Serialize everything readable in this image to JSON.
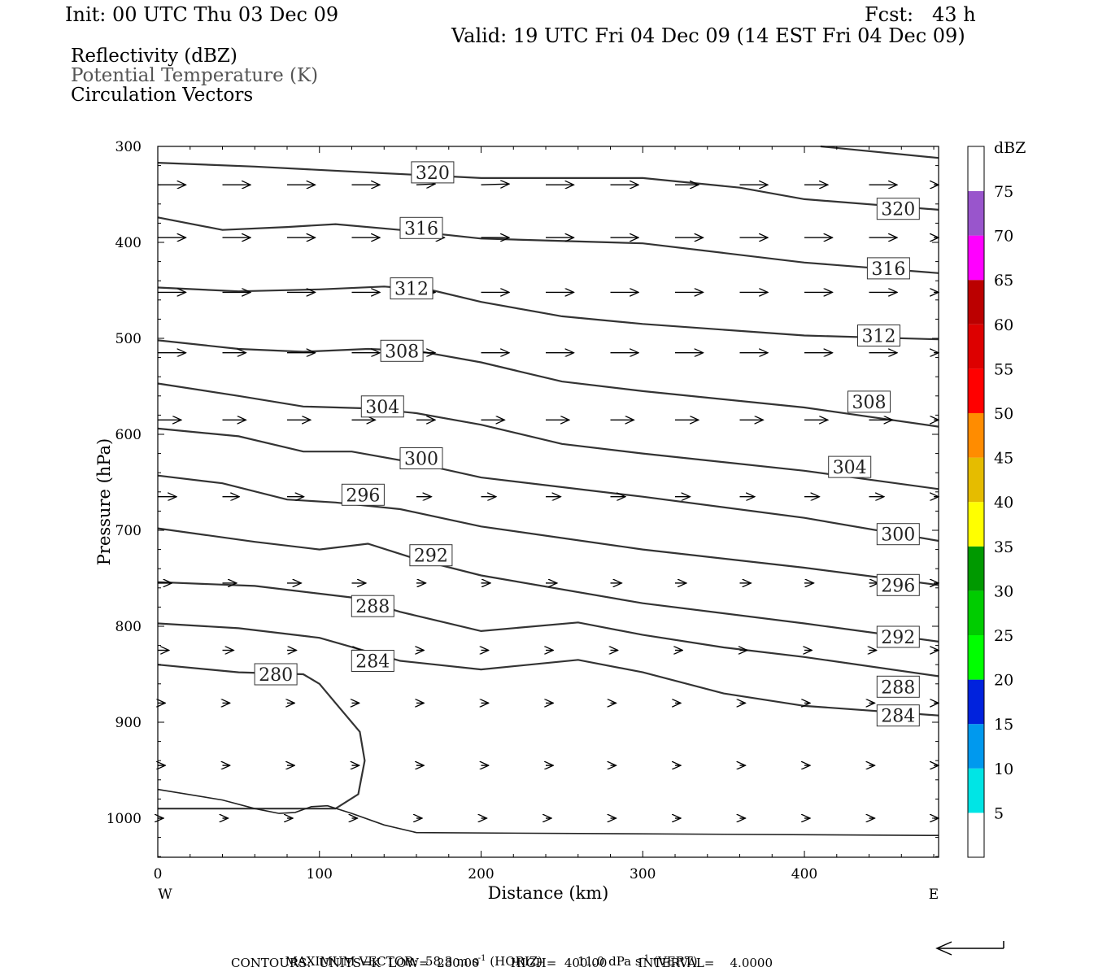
{
  "header": {
    "init": "Init: 00 UTC Thu 03 Dec 09",
    "fcst": "Fcst:   43 h",
    "valid": "Valid: 19 UTC Fri 04 Dec 09 (14 EST Fri 04 Dec 09)",
    "fields": [
      "Reflectivity (dBZ)",
      "Potential Temperature (K)",
      "Circulation Vectors"
    ],
    "field_colors": [
      "#000000",
      "#555555",
      "#000000"
    ]
  },
  "footer": {
    "max_vector": "MAXIMUM VECTOR:  58.3 m s",
    "max_vector_exp1": "-1",
    "max_vector_mid": " (HORIZ)         11.0 dPa s",
    "max_vector_exp2": "-1",
    "max_vector_end": " (VERT)",
    "contours": "CONTOURS:  UNITS=K  LOW=  280.00        HIGH=  400.00        INTERVAL=    4.0000"
  },
  "chart_data": {
    "type": "line",
    "xlabel": "Distance (km)",
    "ylabel": "Pressure (hPa)",
    "xlim": [
      0,
      483
    ],
    "ylim": [
      300,
      1040
    ],
    "y_inverted": true,
    "x_ticks": [
      0,
      100,
      200,
      300,
      400
    ],
    "y_ticks": [
      300,
      400,
      500,
      600,
      700,
      800,
      900,
      1000
    ],
    "x_edge_labels": {
      "left": "W",
      "right": "E"
    },
    "contour_color": "#333333",
    "series": [
      {
        "level": "280",
        "points": [
          [
            0,
            840
          ],
          [
            50,
            848
          ],
          [
            90,
            850
          ],
          [
            100,
            860
          ],
          [
            110,
            880
          ],
          [
            125,
            910
          ],
          [
            128,
            940
          ],
          [
            124,
            975
          ],
          [
            110,
            990
          ],
          [
            0,
            990
          ]
        ]
      },
      {
        "level": "284",
        "points": [
          [
            0,
            797
          ],
          [
            50,
            802
          ],
          [
            100,
            812
          ],
          [
            150,
            836
          ],
          [
            200,
            845
          ],
          [
            260,
            835
          ],
          [
            300,
            848
          ],
          [
            350,
            870
          ],
          [
            400,
            883
          ],
          [
            483,
            893
          ]
        ]
      },
      {
        "level": "288",
        "points": [
          [
            0,
            754
          ],
          [
            60,
            758
          ],
          [
            120,
            770
          ],
          [
            150,
            785
          ],
          [
            200,
            805
          ],
          [
            260,
            796
          ],
          [
            300,
            809
          ],
          [
            350,
            822
          ],
          [
            400,
            832
          ],
          [
            483,
            852
          ]
        ]
      },
      {
        "level": "292",
        "points": [
          [
            0,
            698
          ],
          [
            60,
            712
          ],
          [
            100,
            720
          ],
          [
            130,
            714
          ],
          [
            160,
            730
          ],
          [
            200,
            747
          ],
          [
            300,
            776
          ],
          [
            400,
            797
          ],
          [
            483,
            816
          ]
        ]
      },
      {
        "level": "296",
        "points": [
          [
            0,
            643
          ],
          [
            40,
            651
          ],
          [
            80,
            668
          ],
          [
            110,
            671
          ],
          [
            150,
            678
          ],
          [
            200,
            696
          ],
          [
            300,
            720
          ],
          [
            400,
            739
          ],
          [
            483,
            757
          ]
        ]
      },
      {
        "level": "300",
        "points": [
          [
            0,
            594
          ],
          [
            50,
            602
          ],
          [
            90,
            618
          ],
          [
            120,
            618
          ],
          [
            160,
            630
          ],
          [
            200,
            645
          ],
          [
            300,
            665
          ],
          [
            400,
            687
          ],
          [
            483,
            711
          ]
        ]
      },
      {
        "level": "304",
        "points": [
          [
            0,
            547
          ],
          [
            50,
            560
          ],
          [
            90,
            571
          ],
          [
            130,
            573
          ],
          [
            160,
            578
          ],
          [
            200,
            590
          ],
          [
            250,
            610
          ],
          [
            300,
            620
          ],
          [
            400,
            638
          ],
          [
            483,
            657
          ]
        ]
      },
      {
        "level": "308",
        "points": [
          [
            0,
            502
          ],
          [
            50,
            511
          ],
          [
            90,
            514
          ],
          [
            130,
            511
          ],
          [
            160,
            513
          ],
          [
            200,
            525
          ],
          [
            250,
            545
          ],
          [
            300,
            555
          ],
          [
            400,
            572
          ],
          [
            483,
            592
          ]
        ]
      },
      {
        "level": "312",
        "points": [
          [
            0,
            447
          ],
          [
            50,
            451
          ],
          [
            100,
            449
          ],
          [
            140,
            446
          ],
          [
            170,
            450
          ],
          [
            200,
            462
          ],
          [
            250,
            477
          ],
          [
            300,
            485
          ],
          [
            400,
            497
          ],
          [
            483,
            501
          ]
        ]
      },
      {
        "level": "316",
        "points": [
          [
            0,
            374
          ],
          [
            40,
            387
          ],
          [
            80,
            384
          ],
          [
            110,
            381
          ],
          [
            150,
            387
          ],
          [
            200,
            396
          ],
          [
            300,
            401
          ],
          [
            400,
            421
          ],
          [
            483,
            432
          ]
        ]
      },
      {
        "level": "320",
        "points": [
          [
            0,
            317
          ],
          [
            60,
            321
          ],
          [
            140,
            328
          ],
          [
            200,
            333
          ],
          [
            300,
            333
          ],
          [
            360,
            343
          ],
          [
            400,
            355
          ],
          [
            483,
            366
          ]
        ]
      },
      {
        "level": "324",
        "points": [
          [
            410,
            300
          ],
          [
            483,
            312
          ]
        ]
      },
      {
        "level": "ground",
        "points": [
          [
            0,
            970
          ],
          [
            40,
            981
          ],
          [
            60,
            990
          ],
          [
            75,
            995
          ],
          [
            85,
            994
          ],
          [
            95,
            988
          ],
          [
            105,
            987
          ],
          [
            120,
            995
          ],
          [
            140,
            1007
          ],
          [
            160,
            1015
          ],
          [
            483,
            1018
          ]
        ]
      }
    ],
    "contour_labels": [
      {
        "text": "320",
        "x": 170,
        "y": 327
      },
      {
        "text": "320",
        "x": 458,
        "y": 365
      },
      {
        "text": "316",
        "x": 163,
        "y": 385
      },
      {
        "text": "316",
        "x": 452,
        "y": 427
      },
      {
        "text": "312",
        "x": 157,
        "y": 448
      },
      {
        "text": "312",
        "x": 446,
        "y": 497
      },
      {
        "text": "308",
        "x": 151,
        "y": 513
      },
      {
        "text": "308",
        "x": 440,
        "y": 566
      },
      {
        "text": "304",
        "x": 139,
        "y": 571
      },
      {
        "text": "304",
        "x": 428,
        "y": 634
      },
      {
        "text": "300",
        "x": 163,
        "y": 625
      },
      {
        "text": "300",
        "x": 458,
        "y": 704
      },
      {
        "text": "296",
        "x": 127,
        "y": 663
      },
      {
        "text": "296",
        "x": 458,
        "y": 757
      },
      {
        "text": "292",
        "x": 169,
        "y": 726
      },
      {
        "text": "292",
        "x": 458,
        "y": 811
      },
      {
        "text": "288",
        "x": 133,
        "y": 779
      },
      {
        "text": "288",
        "x": 458,
        "y": 863
      },
      {
        "text": "284",
        "x": 133,
        "y": 836
      },
      {
        "text": "284",
        "x": 458,
        "y": 893
      },
      {
        "text": "280",
        "x": 73,
        "y": 850
      }
    ],
    "vectors": [
      {
        "p": 340,
        "xs": [
          0,
          40,
          80,
          120,
          160,
          200,
          240,
          280,
          320,
          360,
          400,
          440,
          480
        ],
        "dx": [
          30,
          30,
          30,
          30,
          20,
          30,
          30,
          30,
          25,
          30,
          25,
          30,
          30
        ],
        "dy": [
          0,
          0,
          0,
          0,
          -1,
          -1,
          0,
          0,
          0,
          0,
          0,
          0,
          0
        ]
      },
      {
        "p": 395,
        "xs": [
          0,
          40,
          80,
          120,
          160,
          200,
          240,
          280,
          320,
          360,
          400,
          440,
          480
        ],
        "dx": [
          30,
          30,
          30,
          30,
          30,
          30,
          30,
          30,
          30,
          30,
          30,
          30,
          20
        ],
        "dy": [
          0,
          0,
          0,
          0,
          0,
          0,
          0,
          0,
          0,
          0,
          0,
          0,
          0
        ]
      },
      {
        "p": 452,
        "xs": [
          0,
          40,
          80,
          120,
          160,
          200,
          240,
          280,
          320,
          360,
          400,
          440,
          480
        ],
        "dx": [
          30,
          30,
          30,
          30,
          20,
          30,
          30,
          30,
          30,
          30,
          30,
          30,
          20
        ],
        "dy": [
          0,
          0,
          0,
          0,
          0,
          0,
          0,
          0,
          0,
          0,
          0,
          0,
          0
        ]
      },
      {
        "p": 515,
        "xs": [
          0,
          40,
          80,
          120,
          160,
          200,
          240,
          280,
          320,
          360,
          400,
          440,
          480
        ],
        "dx": [
          30,
          25,
          30,
          30,
          20,
          30,
          30,
          30,
          30,
          30,
          30,
          30,
          20
        ],
        "dy": [
          0,
          0,
          0,
          0,
          0,
          0,
          0,
          0,
          0,
          0,
          0,
          0,
          0
        ]
      },
      {
        "p": 585,
        "xs": [
          0,
          40,
          80,
          120,
          160,
          200,
          240,
          280,
          320,
          360,
          400,
          440,
          480
        ],
        "dx": [
          25,
          25,
          25,
          25,
          20,
          25,
          25,
          25,
          25,
          25,
          25,
          25,
          15
        ],
        "dy": [
          0,
          0,
          0,
          0,
          0,
          0,
          0,
          0,
          0,
          0,
          0,
          0,
          0
        ]
      },
      {
        "p": 665,
        "xs": [
          0,
          40,
          80,
          120,
          160,
          200,
          240,
          280,
          320,
          360,
          400,
          440,
          480
        ],
        "dx": [
          20,
          18,
          18,
          18,
          16,
          16,
          16,
          16,
          16,
          16,
          16,
          16,
          16
        ],
        "dy": [
          0,
          0,
          0,
          0,
          0,
          0,
          0,
          0,
          0,
          0,
          0,
          0,
          0
        ]
      },
      {
        "p": 755,
        "xs": [
          0,
          40,
          80,
          120,
          160,
          200,
          240,
          280,
          320,
          360,
          400,
          440,
          480
        ],
        "dx": [
          15,
          15,
          15,
          15,
          10,
          10,
          12,
          12,
          12,
          12,
          10,
          10,
          10
        ],
        "dy": [
          0,
          0,
          0,
          0,
          0,
          0,
          0,
          0,
          0,
          0,
          0,
          0,
          0
        ]
      },
      {
        "p": 825,
        "xs": [
          0,
          40,
          80,
          120,
          160,
          200,
          240,
          280,
          320,
          360,
          400,
          440,
          480
        ],
        "dx": [
          12,
          12,
          10,
          10,
          8,
          8,
          8,
          8,
          8,
          8,
          8,
          8,
          8
        ],
        "dy": [
          0,
          0,
          0,
          0,
          0,
          0,
          0,
          0,
          0,
          0,
          0,
          0,
          0
        ]
      },
      {
        "p": 880,
        "xs": [
          0,
          40,
          80,
          120,
          160,
          200,
          240,
          280,
          320,
          360,
          400,
          440,
          480
        ],
        "dx": [
          8,
          8,
          8,
          8,
          8,
          8,
          8,
          6,
          6,
          6,
          6,
          6,
          6
        ],
        "dy": [
          0,
          0,
          0,
          0,
          0,
          0,
          0,
          0,
          0,
          0,
          0,
          0,
          0
        ]
      },
      {
        "p": 945,
        "xs": [
          0,
          40,
          80,
          120,
          160,
          200,
          240,
          280,
          320,
          360,
          400,
          440,
          480
        ],
        "dx": [
          8,
          8,
          8,
          8,
          8,
          8,
          8,
          6,
          6,
          6,
          6,
          6,
          6
        ],
        "dy": [
          0,
          0,
          0,
          0,
          0,
          0,
          0,
          0,
          0,
          0,
          0,
          0,
          0
        ]
      },
      {
        "p": 1000,
        "xs": [
          0,
          40,
          80,
          120,
          160,
          200,
          240,
          280,
          320,
          360,
          400,
          440,
          480
        ],
        "dx": [
          6,
          6,
          6,
          6,
          6,
          6,
          6,
          6,
          6,
          6,
          6,
          6,
          6
        ],
        "dy": [
          0,
          0,
          0,
          0,
          0,
          0,
          0,
          0,
          0,
          0,
          0,
          0,
          0
        ]
      }
    ],
    "colorbar": {
      "unit": "dBZ",
      "levels": [
        "5",
        "10",
        "15",
        "20",
        "25",
        "30",
        "35",
        "40",
        "45",
        "50",
        "55",
        "60",
        "65",
        "70",
        "75"
      ],
      "colors": [
        "#ffffff",
        "#00e5e5",
        "#0099ee",
        "#0022dd",
        "#00ff00",
        "#00cc00",
        "#009900",
        "#ffff00",
        "#e5bc00",
        "#ff8c00",
        "#ff0000",
        "#dd0000",
        "#bb0000",
        "#ff00ff",
        "#9955cc",
        "#ffffff"
      ]
    },
    "reference_vector": "arrow"
  }
}
